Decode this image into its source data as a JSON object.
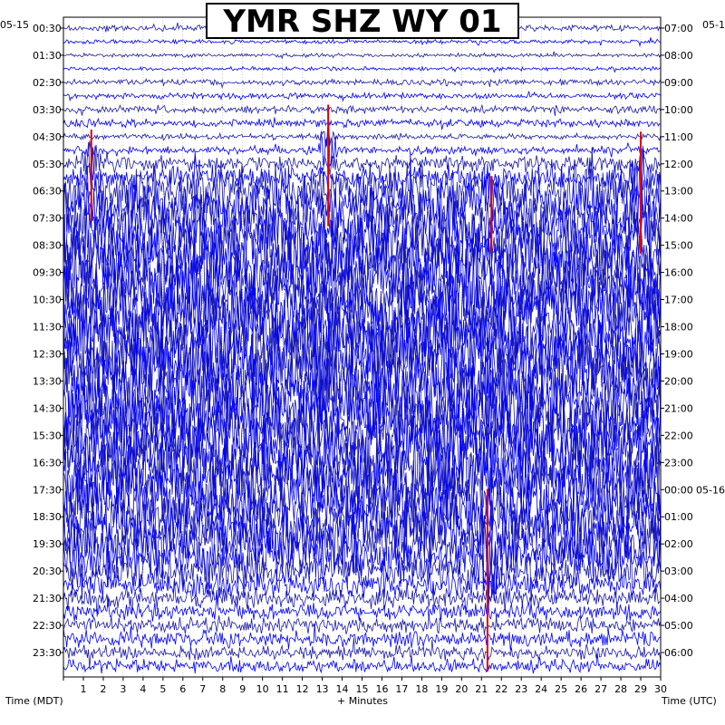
{
  "chart_data": {
    "type": "heatmap",
    "title": "YMR SHZ WY 01",
    "left_axis_label": "Time (MDT)",
    "right_axis_label": "Time (UTC)",
    "x_axis_label": "+ Minutes",
    "start_date_left": "05-15",
    "start_date_right": "05-1",
    "date_change_label": "05-16",
    "x_ticks": [
      "1",
      "2",
      "3",
      "4",
      "5",
      "6",
      "7",
      "8",
      "9",
      "10",
      "11",
      "12",
      "13",
      "14",
      "15",
      "16",
      "17",
      "18",
      "19",
      "20",
      "21",
      "22",
      "23",
      "24",
      "25",
      "26",
      "27",
      "28",
      "29",
      "30"
    ],
    "x_range": [
      0,
      30
    ],
    "left_ticks": [
      "00:30",
      "01:30",
      "02:30",
      "03:30",
      "04:30",
      "05:30",
      "06:30",
      "07:30",
      "08:30",
      "09:30",
      "10:30",
      "11:30",
      "12:30",
      "13:30",
      "14:30",
      "15:30",
      "16:30",
      "17:30",
      "18:30",
      "19:30",
      "20:30",
      "21:30",
      "22:30",
      "23:30"
    ],
    "right_ticks": [
      "07:00",
      "08:00",
      "09:00",
      "10:00",
      "11:00",
      "12:00",
      "13:00",
      "14:00",
      "15:00",
      "16:00",
      "17:00",
      "18:00",
      "19:00",
      "20:00",
      "21:00",
      "22:00",
      "23:00",
      "00:00",
      "01:00",
      "02:00",
      "03:00",
      "04:00",
      "05:00",
      "06:00"
    ],
    "trace_minutes_per_line": 30,
    "trace_count": 48,
    "trace_colors": [
      "#1a1aa8",
      "#0000ff"
    ],
    "clip_color": "#e00000",
    "grid": true,
    "activity_profile": [
      0.3,
      0.2,
      0.2,
      0.2,
      0.3,
      0.3,
      0.4,
      0.4,
      0.3,
      0.4,
      0.8,
      1.3,
      2.5,
      2.8,
      3.0,
      3.2,
      3.4,
      3.6,
      3.7,
      3.8,
      3.8,
      3.9,
      3.8,
      3.8,
      3.9,
      3.8,
      3.8,
      3.7,
      3.8,
      3.7,
      3.6,
      3.7,
      3.6,
      3.5,
      3.4,
      3.3,
      3.2,
      3.0,
      2.8,
      2.6,
      1.8,
      1.3,
      1.0,
      0.9,
      0.8,
      0.8,
      0.7,
      0.7
    ],
    "events": [
      {
        "trace": 10,
        "minute": 1.4,
        "amp": 3.0
      },
      {
        "trace": 9,
        "minute": 13.3,
        "amp": 4.0
      },
      {
        "trace": 13,
        "minute": 21.5,
        "amp": 2.5
      },
      {
        "trace": 11,
        "minute": 29.0,
        "amp": 4.0
      },
      {
        "trace": 39,
        "minute": 21.3,
        "amp": 6.0
      }
    ]
  }
}
